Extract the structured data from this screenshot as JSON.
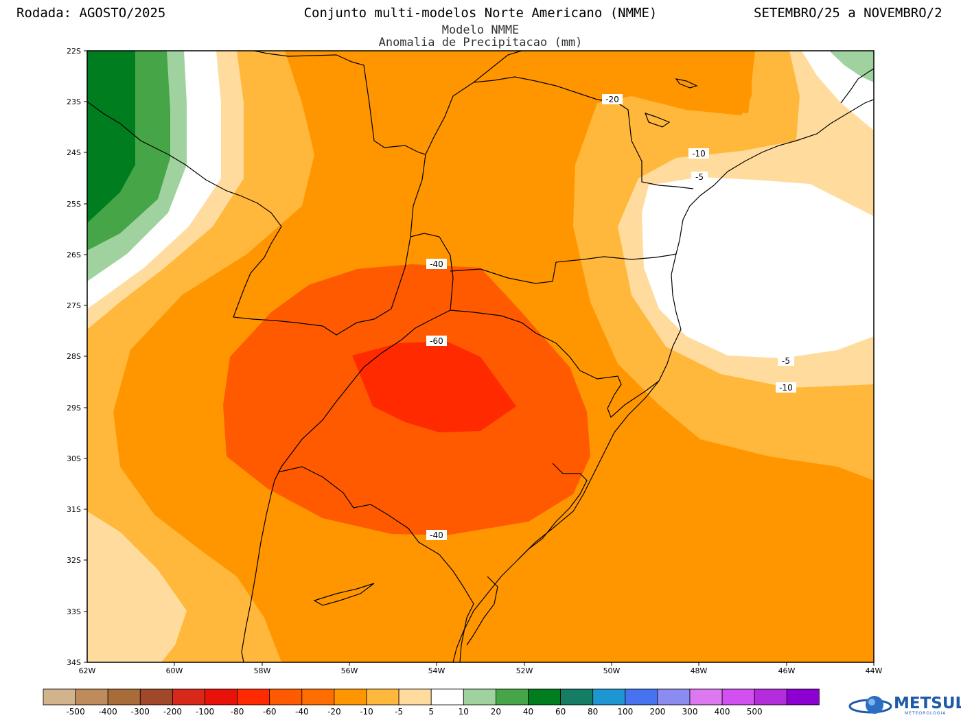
{
  "header": {
    "left": "Rodada:  AGOSTO/2025",
    "center": "Conjunto multi-modelos Norte Americano (NMME)",
    "right": "SETEMBRO/25 a NOVEMBRO/2",
    "subtitle1": "Modelo NMME",
    "subtitle2": "Anomalia de Precipitacao (mm)"
  },
  "map": {
    "lat_labels": [
      "22S",
      "23S",
      "24S",
      "25S",
      "26S",
      "27S",
      "28S",
      "29S",
      "30S",
      "31S",
      "32S",
      "33S",
      "34S"
    ],
    "lon_labels": [
      "62W",
      "60W",
      "58W",
      "56W",
      "54W",
      "52W",
      "50W",
      "48W",
      "46W",
      "44W"
    ],
    "contour_labels": [
      {
        "text": "-20"
      },
      {
        "text": "-10"
      },
      {
        "text": "-5"
      },
      {
        "text": "-40"
      },
      {
        "text": "-60"
      },
      {
        "text": "-40"
      },
      {
        "text": "-5"
      },
      {
        "text": "-10"
      }
    ]
  },
  "colorbar": {
    "colors": [
      "#d2b48c",
      "#bd8c5a",
      "#a86c38",
      "#a04828",
      "#d8281a",
      "#e81208",
      "#ff2a00",
      "#ff5a00",
      "#ff6e00",
      "#ff9600",
      "#ffb83c",
      "#ffdc9e",
      "#ffffff",
      "#a0d2a0",
      "#46a546",
      "#007d1e",
      "#147d64",
      "#1e96d2",
      "#4673f0",
      "#8c8cf0",
      "#dc78f0",
      "#d250f0",
      "#b42ddc",
      "#8c00d2"
    ],
    "labels": [
      "-500",
      "-400",
      "-300",
      "-200",
      "-100",
      "-80",
      "-60",
      "-40",
      "-20",
      "-10",
      "-5",
      "5",
      "10",
      "20",
      "40",
      "60",
      "80",
      "100",
      "200",
      "300",
      "400",
      "500"
    ]
  },
  "logo": {
    "name": "METSUL",
    "sub": "METEOROLOGIA"
  }
}
